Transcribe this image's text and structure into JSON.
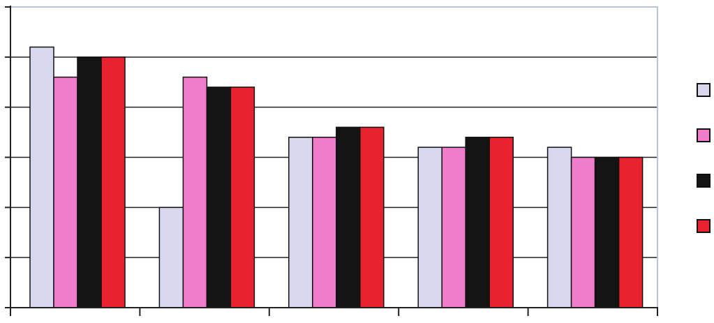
{
  "chart_data": {
    "type": "bar",
    "title": "",
    "xlabel": "",
    "ylabel": "",
    "categories": [
      "",
      "",
      "",
      "",
      ""
    ],
    "ylim": [
      0,
      6
    ],
    "grid": true,
    "legend_position": "right",
    "series": [
      {
        "color": "#d8d8ee",
        "values": [
          5.2,
          2.0,
          3.4,
          3.2,
          3.2
        ]
      },
      {
        "color": "#f07ccc",
        "values": [
          4.6,
          4.6,
          3.4,
          3.2,
          3.0
        ]
      },
      {
        "color": "#141414",
        "values": [
          5.0,
          4.4,
          3.6,
          3.4,
          3.0
        ]
      },
      {
        "color": "#e8232f",
        "values": [
          5.0,
          4.4,
          3.6,
          3.4,
          3.0
        ]
      }
    ]
  }
}
